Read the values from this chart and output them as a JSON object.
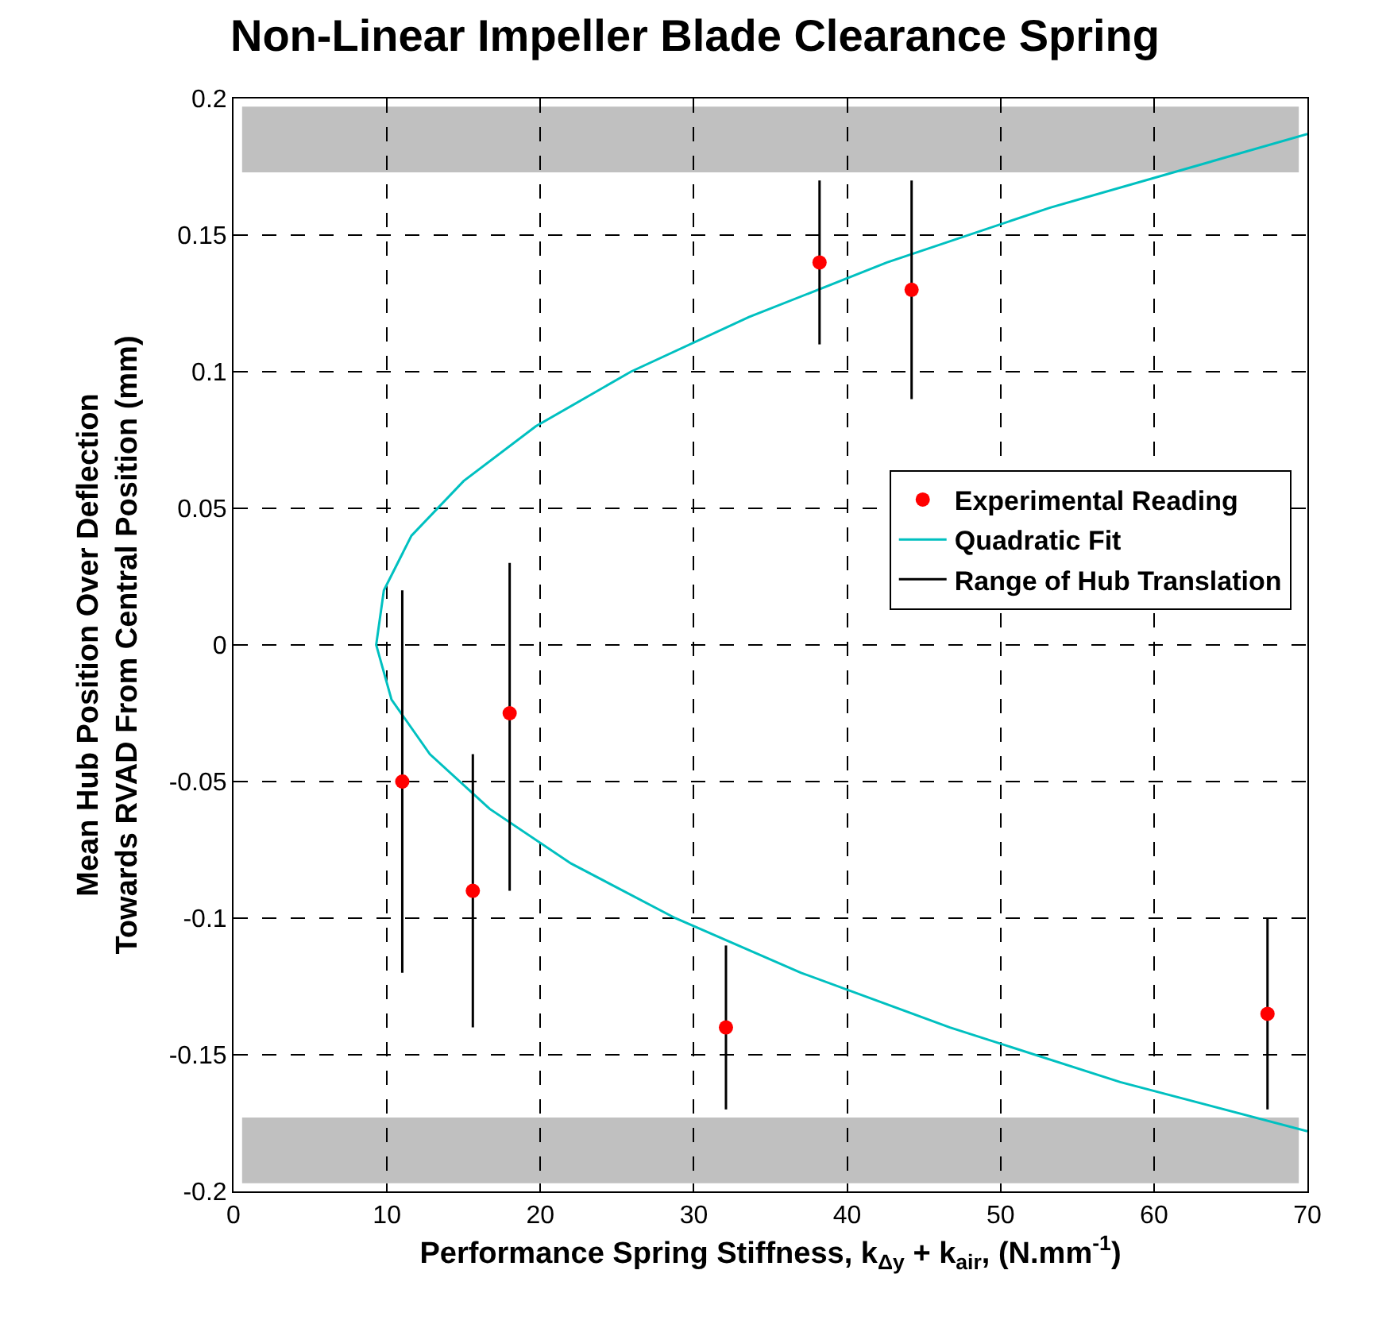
{
  "chart_data": {
    "type": "scatter",
    "title": "Non-Linear Impeller Blade Clearance Spring",
    "xlabel": "Performance Spring Stiffness, k$_{Δy}$ + k$_{air}$, (N.mm$^{-1}$)",
    "ylabel": "Mean Hub Position Over Deflection\nTowards RVAD From Central Position (mm)",
    "series": [
      {
        "name": "Experimental Reading",
        "color": "#ff0000",
        "marker": "circle",
        "x": [
          11,
          15.6,
          18,
          32.1,
          38.2,
          44.2,
          67.4
        ],
        "values": [
          -0.05,
          -0.09,
          -0.025,
          -0.14,
          0.14,
          0.13,
          -0.135
        ]
      },
      {
        "name": "Quadratic Fit",
        "type": "line",
        "color": "#00c0c0",
        "line_style": "solid",
        "x": [
          70,
          57.8,
          46.7,
          37.0,
          28.8,
          22.0,
          16.7,
          12.8,
          10.3,
          9.3,
          9.8,
          11.6,
          15.0,
          19.7,
          25.9,
          33.6,
          42.6,
          53.2,
          70
        ],
        "values": [
          -0.178,
          -0.16,
          -0.14,
          -0.12,
          -0.1,
          -0.08,
          -0.06,
          -0.04,
          -0.02,
          0,
          0.02,
          0.04,
          0.06,
          0.08,
          0.1,
          0.12,
          0.14,
          0.16,
          0.187
        ]
      },
      {
        "name": "Range of Hub Translation",
        "type": "line",
        "color": "#000000",
        "line_style": "solid",
        "x": [
          11,
          11,
          null,
          15.6,
          15.6,
          null,
          18,
          18,
          null,
          32.1,
          32.1,
          null,
          38.2,
          38.2,
          null,
          44.2,
          44.2,
          null,
          67.4,
          67.4
        ],
        "values": [
          0.02,
          -0.12,
          null,
          -0.04,
          -0.14,
          null,
          0.03,
          -0.09,
          null,
          -0.11,
          -0.17,
          null,
          0.17,
          0.11,
          null,
          0.17,
          0.09,
          null,
          -0.1,
          -0.17
        ]
      }
    ],
    "bands": [
      {
        "axis": "y",
        "from": 0.173,
        "to": 0.197,
        "color": "#c0c0c0"
      },
      {
        "axis": "y",
        "from": -0.197,
        "to": -0.173,
        "color": "#c0c0c0"
      }
    ],
    "xlim": [
      0,
      70
    ],
    "xticks": [
      0,
      10,
      20,
      30,
      40,
      50,
      60,
      70
    ],
    "ylim": [
      -0.2,
      0.2
    ],
    "yticks": [
      -0.2,
      -0.15,
      -0.1,
      -0.05,
      0,
      0.05,
      0.1,
      0.15,
      0.2
    ],
    "grid": true,
    "legend": "right"
  }
}
